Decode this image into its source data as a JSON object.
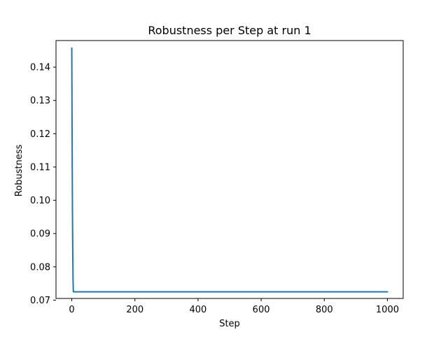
{
  "chart_data": {
    "type": "line",
    "title": "Robustness per Step at run 1",
    "xlabel": "Step",
    "ylabel": "Robustness",
    "xlim": [
      -50,
      1050
    ],
    "ylim": [
      0.0705,
      0.148
    ],
    "xticks": [
      0,
      200,
      400,
      600,
      800,
      1000
    ],
    "xtick_labels": [
      "0",
      "200",
      "400",
      "600",
      "800",
      "1000"
    ],
    "yticks": [
      0.07,
      0.08,
      0.09,
      0.1,
      0.11,
      0.12,
      0.13,
      0.14
    ],
    "ytick_labels": [
      "0.07",
      "0.08",
      "0.09",
      "0.10",
      "0.11",
      "0.12",
      "0.13",
      "0.14"
    ],
    "grid": false,
    "series": [
      {
        "name": "Robustness",
        "color": "#1f77b4",
        "x": [
          0,
          1,
          2,
          3,
          4,
          5,
          10,
          50,
          100,
          200,
          300,
          400,
          500,
          600,
          700,
          800,
          900,
          1000
        ],
        "y": [
          0.1457,
          0.12,
          0.098,
          0.085,
          0.076,
          0.0725,
          0.0725,
          0.0725,
          0.0725,
          0.0725,
          0.0725,
          0.0725,
          0.0725,
          0.0725,
          0.0725,
          0.0725,
          0.0725,
          0.0725
        ]
      }
    ]
  }
}
